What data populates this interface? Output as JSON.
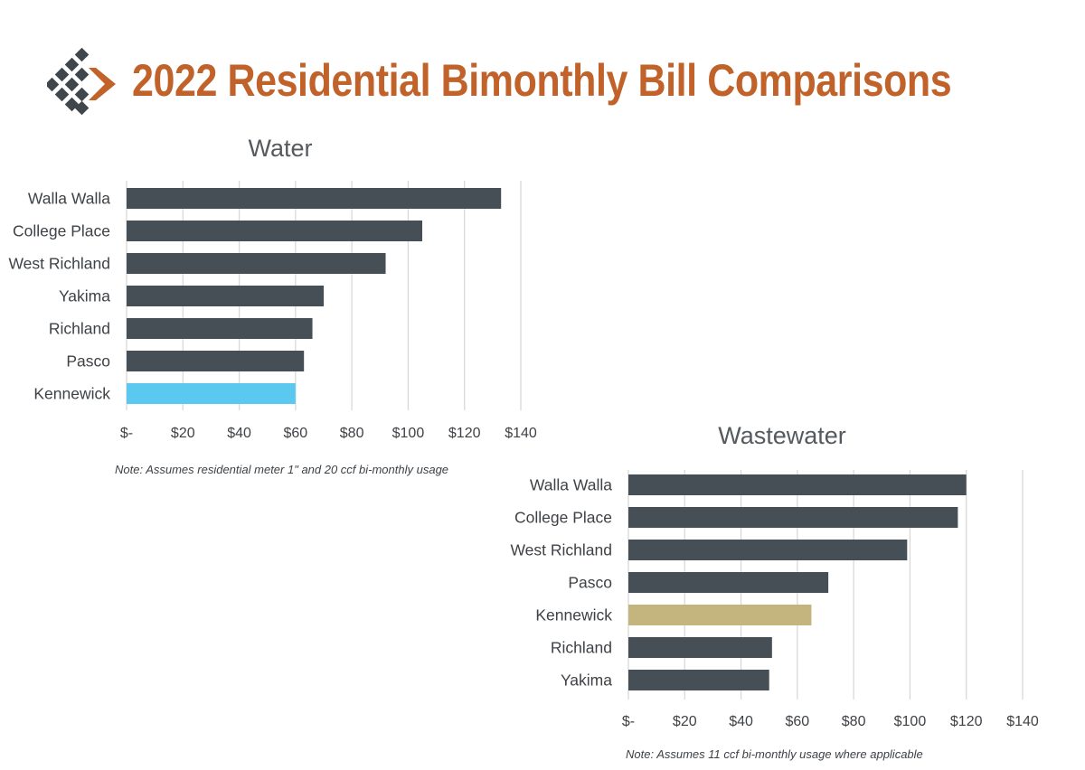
{
  "page": {
    "title": "2022 Residential Bimonthly Bill Comparisons"
  },
  "colors": {
    "title": "#c0622a",
    "bar_default": "#464f56",
    "logo_dark": "#3f474d",
    "logo_accent": "#c0622a"
  },
  "chart_data": [
    {
      "type": "bar",
      "orientation": "horizontal",
      "title": "Water",
      "categories": [
        "Walla Walla",
        "College Place",
        "West Richland",
        "Yakima",
        "Richland",
        "Pasco",
        "Kennewick"
      ],
      "values": [
        133,
        105,
        92,
        70,
        66,
        63,
        60
      ],
      "highlight": "Kennewick",
      "highlight_color": "#5bc8f0",
      "xlim": [
        0,
        140
      ],
      "xticks": [
        0,
        20,
        40,
        60,
        80,
        100,
        120,
        140
      ],
      "tick_labels": [
        "$-",
        "$20",
        "$40",
        "$60",
        "$80",
        "$100",
        "$120",
        "$140"
      ],
      "grid": true,
      "note": "Note: Assumes residential meter 1\" and 20 ccf bi-monthly usage"
    },
    {
      "type": "bar",
      "orientation": "horizontal",
      "title": "Wastewater",
      "categories": [
        "Walla Walla",
        "College Place",
        "West Richland",
        "Pasco",
        "Kennewick",
        "Richland",
        "Yakima"
      ],
      "values": [
        120,
        117,
        99,
        71,
        65,
        51,
        50
      ],
      "highlight": "Kennewick",
      "highlight_color": "#c4b47e",
      "xlim": [
        0,
        140
      ],
      "xticks": [
        0,
        20,
        40,
        60,
        80,
        100,
        120,
        140
      ],
      "tick_labels": [
        "$-",
        "$20",
        "$40",
        "$60",
        "$80",
        "$100",
        "$120",
        "$140"
      ],
      "grid": true,
      "note": "Note: Assumes 11 ccf bi-monthly usage where applicable"
    }
  ]
}
